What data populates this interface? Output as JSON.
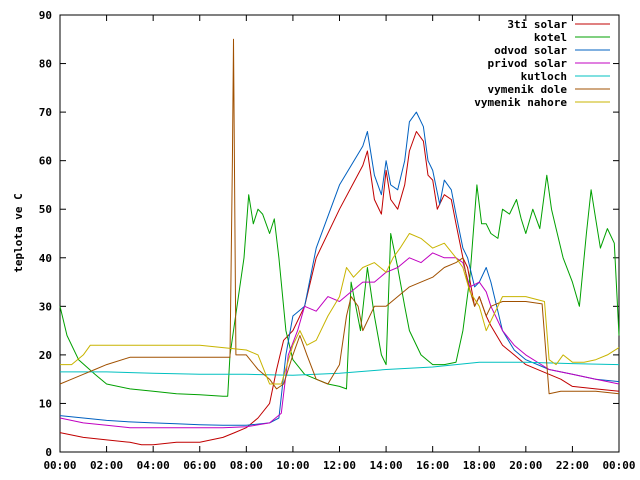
{
  "chart_data": {
    "type": "line",
    "ylabel": "teplota ve C",
    "xlabel": "",
    "ylim": [
      0,
      90
    ],
    "xlim": [
      0,
      24
    ],
    "y_ticks": [
      0,
      10,
      20,
      30,
      40,
      50,
      60,
      70,
      80,
      90
    ],
    "x_ticks": [
      {
        "value": 0,
        "label": "00:00"
      },
      {
        "value": 2,
        "label": "02:00"
      },
      {
        "value": 4,
        "label": "04:00"
      },
      {
        "value": 6,
        "label": "06:00"
      },
      {
        "value": 8,
        "label": "08:00"
      },
      {
        "value": 10,
        "label": "10:00"
      },
      {
        "value": 12,
        "label": "12:00"
      },
      {
        "value": 14,
        "label": "14:00"
      },
      {
        "value": 16,
        "label": "16:00"
      },
      {
        "value": 18,
        "label": "18:00"
      },
      {
        "value": 20,
        "label": "20:00"
      },
      {
        "value": 22,
        "label": "22:00"
      },
      {
        "value": 24,
        "label": "00:00"
      }
    ],
    "legend_position": "top-right",
    "grid": false,
    "series": [
      {
        "name": "3ti solar",
        "color": "#c00000",
        "points": [
          [
            0,
            4
          ],
          [
            1,
            3
          ],
          [
            2,
            2.5
          ],
          [
            3,
            2
          ],
          [
            3.5,
            1.5
          ],
          [
            4,
            1.5
          ],
          [
            5,
            2
          ],
          [
            6,
            2
          ],
          [
            7,
            3
          ],
          [
            7.5,
            4
          ],
          [
            8,
            5
          ],
          [
            8.5,
            7
          ],
          [
            9,
            10
          ],
          [
            9.3,
            17
          ],
          [
            9.6,
            23
          ],
          [
            10,
            25
          ],
          [
            10.5,
            30
          ],
          [
            11,
            40
          ],
          [
            12,
            50
          ],
          [
            13,
            59
          ],
          [
            13.2,
            62
          ],
          [
            13.5,
            52
          ],
          [
            13.8,
            49
          ],
          [
            14,
            58
          ],
          [
            14.2,
            52
          ],
          [
            14.5,
            50
          ],
          [
            14.8,
            55
          ],
          [
            15,
            62
          ],
          [
            15.3,
            66
          ],
          [
            15.6,
            64
          ],
          [
            15.8,
            57
          ],
          [
            16,
            56
          ],
          [
            16.2,
            50
          ],
          [
            16.5,
            53
          ],
          [
            16.8,
            52
          ],
          [
            17,
            47
          ],
          [
            17.3,
            40
          ],
          [
            17.5,
            38
          ],
          [
            17.8,
            30
          ],
          [
            18,
            32
          ],
          [
            18.3,
            28
          ],
          [
            18.5,
            26
          ],
          [
            19,
            22
          ],
          [
            19.5,
            20
          ],
          [
            20,
            18
          ],
          [
            21,
            16
          ],
          [
            21.5,
            15
          ],
          [
            22,
            13.5
          ],
          [
            23,
            13
          ],
          [
            24,
            12.5
          ]
        ]
      },
      {
        "name": "kotel",
        "color": "#00a000",
        "points": [
          [
            0,
            30
          ],
          [
            0.3,
            24
          ],
          [
            0.8,
            19
          ],
          [
            1.5,
            16
          ],
          [
            2,
            14
          ],
          [
            3,
            13
          ],
          [
            4,
            12.5
          ],
          [
            5,
            12
          ],
          [
            6,
            11.8
          ],
          [
            7,
            11.5
          ],
          [
            7.2,
            11.5
          ],
          [
            7.3,
            20
          ],
          [
            7.6,
            30
          ],
          [
            7.9,
            40
          ],
          [
            8.1,
            53
          ],
          [
            8.3,
            47
          ],
          [
            8.5,
            50
          ],
          [
            8.7,
            49
          ],
          [
            9,
            45
          ],
          [
            9.2,
            48
          ],
          [
            9.4,
            40
          ],
          [
            9.7,
            25
          ],
          [
            10,
            19
          ],
          [
            10.5,
            16
          ],
          [
            11,
            15
          ],
          [
            11.5,
            14
          ],
          [
            12,
            13.5
          ],
          [
            12.3,
            13
          ],
          [
            12.5,
            35
          ],
          [
            12.7,
            30
          ],
          [
            12.9,
            25
          ],
          [
            13.2,
            38
          ],
          [
            13.5,
            28
          ],
          [
            13.8,
            20
          ],
          [
            14,
            18
          ],
          [
            14.2,
            45
          ],
          [
            14.5,
            38
          ],
          [
            14.8,
            30
          ],
          [
            15,
            25
          ],
          [
            15.5,
            20
          ],
          [
            16,
            18
          ],
          [
            16.5,
            18
          ],
          [
            17,
            18.5
          ],
          [
            17.3,
            25
          ],
          [
            17.6,
            36
          ],
          [
            17.9,
            55
          ],
          [
            18.1,
            47
          ],
          [
            18.3,
            47
          ],
          [
            18.5,
            45
          ],
          [
            18.8,
            44
          ],
          [
            19,
            50
          ],
          [
            19.3,
            49
          ],
          [
            19.6,
            52
          ],
          [
            19.8,
            48
          ],
          [
            20,
            45
          ],
          [
            20.3,
            50
          ],
          [
            20.6,
            46
          ],
          [
            20.9,
            57
          ],
          [
            21.1,
            50
          ],
          [
            21.3,
            46
          ],
          [
            21.6,
            40
          ],
          [
            22,
            35
          ],
          [
            22.3,
            30
          ],
          [
            22.6,
            45
          ],
          [
            22.8,
            54
          ],
          [
            23,
            48
          ],
          [
            23.2,
            42
          ],
          [
            23.5,
            46
          ],
          [
            23.8,
            43
          ],
          [
            24,
            24
          ]
        ]
      },
      {
        "name": "odvod solar",
        "color": "#0060c0",
        "points": [
          [
            0,
            7.5
          ],
          [
            1,
            7
          ],
          [
            2,
            6.5
          ],
          [
            3,
            6.2
          ],
          [
            4,
            6
          ],
          [
            5,
            5.8
          ],
          [
            6,
            5.6
          ],
          [
            7,
            5.5
          ],
          [
            8,
            5.5
          ],
          [
            9,
            6
          ],
          [
            9.4,
            7
          ],
          [
            9.7,
            20
          ],
          [
            10,
            28
          ],
          [
            10.5,
            30
          ],
          [
            11,
            42
          ],
          [
            12,
            55
          ],
          [
            13,
            63
          ],
          [
            13.2,
            66
          ],
          [
            13.5,
            57
          ],
          [
            13.8,
            53
          ],
          [
            14,
            60
          ],
          [
            14.2,
            55
          ],
          [
            14.5,
            54
          ],
          [
            14.8,
            60
          ],
          [
            15,
            68
          ],
          [
            15.3,
            70
          ],
          [
            15.6,
            67
          ],
          [
            15.8,
            60
          ],
          [
            16,
            58
          ],
          [
            16.3,
            51
          ],
          [
            16.5,
            56
          ],
          [
            16.8,
            54
          ],
          [
            17,
            49
          ],
          [
            17.3,
            42
          ],
          [
            17.5,
            40
          ],
          [
            17.8,
            34
          ],
          [
            18,
            35
          ],
          [
            18.3,
            38
          ],
          [
            18.5,
            35
          ],
          [
            19,
            25
          ],
          [
            19.5,
            21
          ],
          [
            20,
            19
          ],
          [
            21,
            17
          ],
          [
            22,
            16
          ],
          [
            23,
            15
          ],
          [
            24,
            14.5
          ]
        ]
      },
      {
        "name": "privod solar",
        "color": "#c000c0",
        "points": [
          [
            0,
            7
          ],
          [
            1,
            6
          ],
          [
            2,
            5.5
          ],
          [
            3,
            5
          ],
          [
            4,
            5
          ],
          [
            5,
            5
          ],
          [
            6,
            5
          ],
          [
            7,
            5
          ],
          [
            8,
            5.2
          ],
          [
            9,
            6
          ],
          [
            9.5,
            8
          ],
          [
            9.8,
            20
          ],
          [
            10.2,
            25
          ],
          [
            10.5,
            30
          ],
          [
            11,
            29
          ],
          [
            11.5,
            32
          ],
          [
            12,
            31
          ],
          [
            12.5,
            33
          ],
          [
            13,
            35
          ],
          [
            13.5,
            35
          ],
          [
            14,
            37
          ],
          [
            14.5,
            38
          ],
          [
            15,
            40
          ],
          [
            15.5,
            39
          ],
          [
            16,
            41
          ],
          [
            16.5,
            40
          ],
          [
            17,
            40
          ],
          [
            17.3,
            39
          ],
          [
            17.6,
            34
          ],
          [
            18,
            35
          ],
          [
            18.3,
            33
          ],
          [
            18.5,
            30
          ],
          [
            19,
            25
          ],
          [
            19.5,
            22
          ],
          [
            20,
            20
          ],
          [
            21,
            17
          ],
          [
            22,
            16
          ],
          [
            23,
            15
          ],
          [
            24,
            14
          ]
        ]
      },
      {
        "name": "kutloch",
        "color": "#00c0c0",
        "points": [
          [
            0,
            16.5
          ],
          [
            2,
            16.5
          ],
          [
            4,
            16.2
          ],
          [
            6,
            16
          ],
          [
            8,
            16
          ],
          [
            10,
            15.8
          ],
          [
            12,
            16.2
          ],
          [
            14,
            17
          ],
          [
            16,
            17.5
          ],
          [
            18,
            18.5
          ],
          [
            20,
            18.5
          ],
          [
            22,
            18.2
          ],
          [
            24,
            18
          ]
        ]
      },
      {
        "name": "vymenik dole",
        "color": "#a05000",
        "points": [
          [
            0,
            14
          ],
          [
            0.5,
            15
          ],
          [
            1,
            16
          ],
          [
            1.5,
            17
          ],
          [
            2,
            18
          ],
          [
            3,
            19.5
          ],
          [
            4,
            19.5
          ],
          [
            5,
            19.5
          ],
          [
            6,
            19.5
          ],
          [
            7,
            19.5
          ],
          [
            7.3,
            19.5
          ],
          [
            7.4,
            60
          ],
          [
            7.45,
            85
          ],
          [
            7.55,
            20
          ],
          [
            8,
            20
          ],
          [
            8.5,
            17
          ],
          [
            9,
            15
          ],
          [
            9.3,
            13
          ],
          [
            9.6,
            14
          ],
          [
            10,
            20
          ],
          [
            10.3,
            24
          ],
          [
            10.6,
            20
          ],
          [
            11,
            15
          ],
          [
            11.5,
            14
          ],
          [
            12,
            18
          ],
          [
            12.3,
            28
          ],
          [
            12.5,
            32
          ],
          [
            12.8,
            30
          ],
          [
            13,
            25
          ],
          [
            13.5,
            30
          ],
          [
            14,
            30
          ],
          [
            14.5,
            32
          ],
          [
            15,
            34
          ],
          [
            15.5,
            35
          ],
          [
            16,
            36
          ],
          [
            16.5,
            38
          ],
          [
            17,
            39
          ],
          [
            17.3,
            40
          ],
          [
            17.5,
            35
          ],
          [
            17.8,
            30
          ],
          [
            18,
            32
          ],
          [
            18.3,
            28
          ],
          [
            18.5,
            30
          ],
          [
            19,
            31
          ],
          [
            20,
            31
          ],
          [
            20.7,
            30.5
          ],
          [
            21,
            12
          ],
          [
            21.5,
            12.5
          ],
          [
            22,
            12.5
          ],
          [
            23,
            12.5
          ],
          [
            24,
            12
          ]
        ]
      },
      {
        "name": "vymenik nahore",
        "color": "#c8b400",
        "points": [
          [
            0,
            18
          ],
          [
            0.5,
            18
          ],
          [
            1,
            20
          ],
          [
            1.3,
            22
          ],
          [
            2,
            22
          ],
          [
            3,
            22
          ],
          [
            4,
            22
          ],
          [
            5,
            22
          ],
          [
            6,
            22
          ],
          [
            7,
            21.5
          ],
          [
            8,
            21
          ],
          [
            8.5,
            20
          ],
          [
            9,
            14
          ],
          [
            9.5,
            14
          ],
          [
            10,
            22
          ],
          [
            10.3,
            25
          ],
          [
            10.6,
            22
          ],
          [
            11,
            23
          ],
          [
            11.5,
            28
          ],
          [
            12,
            32
          ],
          [
            12.3,
            38
          ],
          [
            12.6,
            36
          ],
          [
            13,
            38
          ],
          [
            13.5,
            39
          ],
          [
            14,
            37
          ],
          [
            14.3,
            40
          ],
          [
            14.6,
            42
          ],
          [
            15,
            45
          ],
          [
            15.5,
            44
          ],
          [
            16,
            42
          ],
          [
            16.5,
            43
          ],
          [
            17,
            40
          ],
          [
            17.3,
            38
          ],
          [
            17.6,
            33
          ],
          [
            18,
            30
          ],
          [
            18.3,
            25
          ],
          [
            18.5,
            27
          ],
          [
            19,
            32
          ],
          [
            20,
            32
          ],
          [
            20.8,
            31
          ],
          [
            21,
            19
          ],
          [
            21.3,
            18
          ],
          [
            21.6,
            20
          ],
          [
            22,
            18.5
          ],
          [
            22.5,
            18.5
          ],
          [
            23,
            19
          ],
          [
            23.5,
            20
          ],
          [
            24,
            21.5
          ]
        ]
      }
    ]
  }
}
